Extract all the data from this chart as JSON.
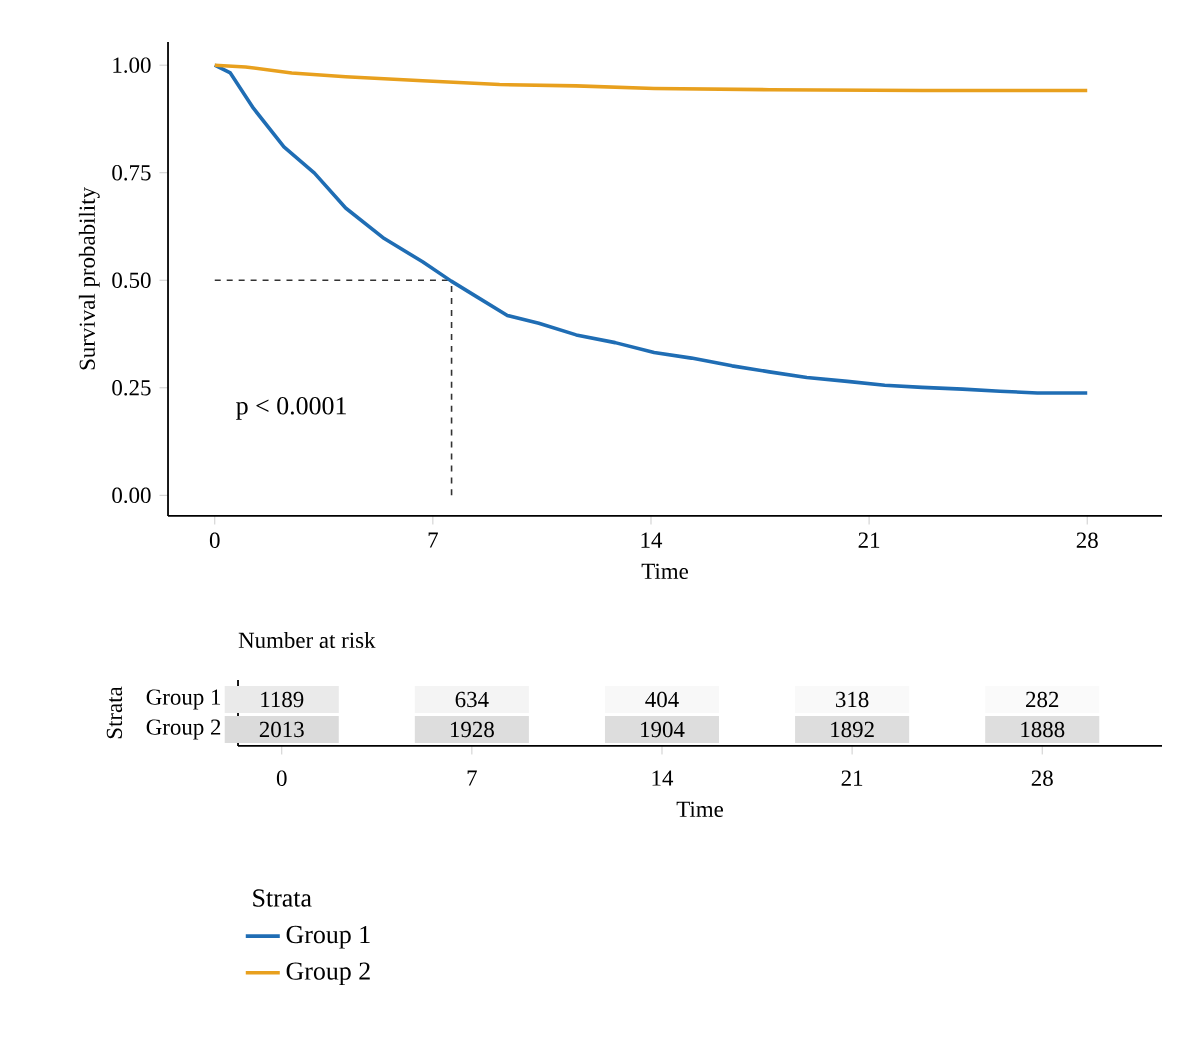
{
  "chart_data": [
    {
      "type": "line",
      "xlabel": "Time",
      "ylabel": "Survival probability",
      "legend_title": "Strata",
      "legend": "bottom left",
      "xlim": [
        -1.5,
        30.4
      ],
      "ylim": [
        -0.048,
        1.054
      ],
      "xticks": [
        0,
        7,
        14,
        21,
        28
      ],
      "yticks": [
        {
          "value": 0,
          "label": "0.00"
        },
        {
          "value": 0.25,
          "label": "0.25"
        },
        {
          "value": 0.5,
          "label": "0.50"
        },
        {
          "value": 0.75,
          "label": "0.75"
        },
        {
          "value": 1,
          "label": "1.00"
        }
      ],
      "annotations": [
        "p < 0.0001"
      ],
      "ref_lines": [
        {
          "axis": "y",
          "value": 0.5,
          "color": "#333333",
          "line_style": "dashed"
        },
        {
          "axis": "x",
          "value": 7.6,
          "color": "#333333",
          "line_style": "dashed"
        }
      ],
      "series": [
        {
          "name": "Group 1",
          "color": "#1f6db4",
          "x": [
            0,
            0.5,
            1.24,
            2.22,
            3.2,
            4.2,
            5.44,
            6.67,
            7.59,
            8.4,
            9.39,
            10.4,
            11.6,
            12.85,
            14.1,
            15.3,
            16.6,
            17.8,
            19.0,
            20.3,
            21.5,
            22.7,
            24.0,
            25.2,
            26.4,
            28
          ],
          "values": [
            1.0,
            0.982,
            0.9,
            0.81,
            0.749,
            0.668,
            0.597,
            0.543,
            0.498,
            0.462,
            0.418,
            0.4,
            0.373,
            0.355,
            0.332,
            0.319,
            0.301,
            0.287,
            0.274,
            0.265,
            0.256,
            0.251,
            0.247,
            0.242,
            0.238,
            0.238
          ]
        },
        {
          "name": "Group 2",
          "color": "#e8a01e",
          "x": [
            0,
            0.99,
            2.47,
            4.2,
            6.67,
            9.14,
            11.6,
            14.1,
            17.8,
            22.7,
            28
          ],
          "values": [
            1.0,
            0.996,
            0.982,
            0.973,
            0.964,
            0.955,
            0.952,
            0.946,
            0.943,
            0.941,
            0.941
          ]
        }
      ]
    },
    {
      "type": "heatmap",
      "title": "Number at risk",
      "xlabel": "Time",
      "ylabel": "Strata",
      "categories": [
        "0",
        "7",
        "14",
        "21",
        "28"
      ],
      "y_categories": [
        "Group 1",
        "Group 2"
      ],
      "cells": [
        [
          1189,
          634,
          404,
          318,
          282
        ],
        [
          2013,
          1928,
          1904,
          1892,
          1888
        ]
      ],
      "cell_labels": [
        [
          "1189",
          "634",
          "404",
          "318",
          "282"
        ],
        [
          "2013",
          "1928",
          "1904",
          "1892",
          "1888"
        ]
      ]
    }
  ]
}
